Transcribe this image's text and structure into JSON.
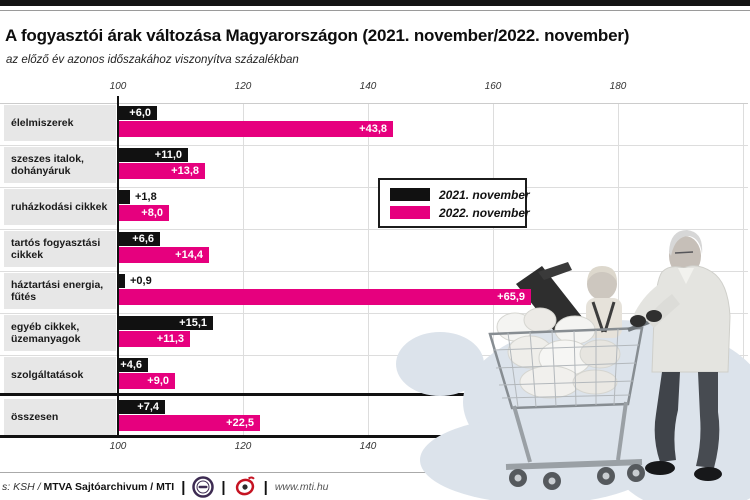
{
  "page": {
    "title": "A fogyasztói árak változása Magyarországon (2021. november/2022. november)",
    "subtitle": "az előző év azonos időszakához viszonyítva százalékban"
  },
  "chart_data": {
    "type": "bar",
    "orientation": "horizontal",
    "title": "A fogyasztói árak változása Magyarországon (2021. november/2022. november)",
    "subtitle": "az előző év azonos időszakához viszonyítva százalékban",
    "axis": {
      "tick_labels": [
        100,
        120,
        140,
        160,
        180
      ],
      "baseline": 100,
      "max": 200,
      "grid": true,
      "tick_positions": "top and bottom"
    },
    "categories": [
      [
        "élelmiszerek"
      ],
      [
        "szeszes italok,",
        "dohányáruk"
      ],
      [
        "ruházkodási cikkek"
      ],
      [
        "tartós fogyasztási",
        "cikkek"
      ],
      [
        "háztartási energia,",
        "fűtés"
      ],
      [
        "egyéb cikkek,",
        "üzemanyagok"
      ],
      [
        "szolgáltatások"
      ],
      [
        "összesen"
      ]
    ],
    "series": [
      {
        "name": "2021. november",
        "color": "#111111",
        "values": [
          6.0,
          11.0,
          1.8,
          6.6,
          0.9,
          15.1,
          4.6,
          7.4
        ],
        "value_labels": [
          "+6,0",
          "+11,0",
          "+1,8",
          "+6,6",
          "+0,9",
          "+15,1",
          "+4,6",
          "+7,4"
        ]
      },
      {
        "name": "2022. november",
        "color": "#e6007e",
        "values": [
          43.8,
          13.8,
          8.0,
          14.4,
          65.9,
          11.3,
          9.0,
          22.5
        ],
        "value_labels": [
          "+43,8",
          "+13,8",
          "+8,0",
          "+14,4",
          "+65,9",
          "+11,3",
          "+9,0",
          "+22,5"
        ]
      }
    ],
    "legend_position": "center-right box over plot"
  },
  "colors": {
    "accent_magenta": "#e6007e",
    "series_black": "#111111",
    "category_box_gray": "#e7e7e7",
    "blob_background": "#dce3eb"
  },
  "icons": {
    "logo_left": "mtva-circle-logo-icon",
    "logo_right": "mti-circle-logo-icon"
  },
  "footer": {
    "source_prefix": "s: KSH /",
    "source_bold": "MTVA Sajtóarchivum / MTI",
    "pipe": "|",
    "url": "www.mti.hu"
  }
}
